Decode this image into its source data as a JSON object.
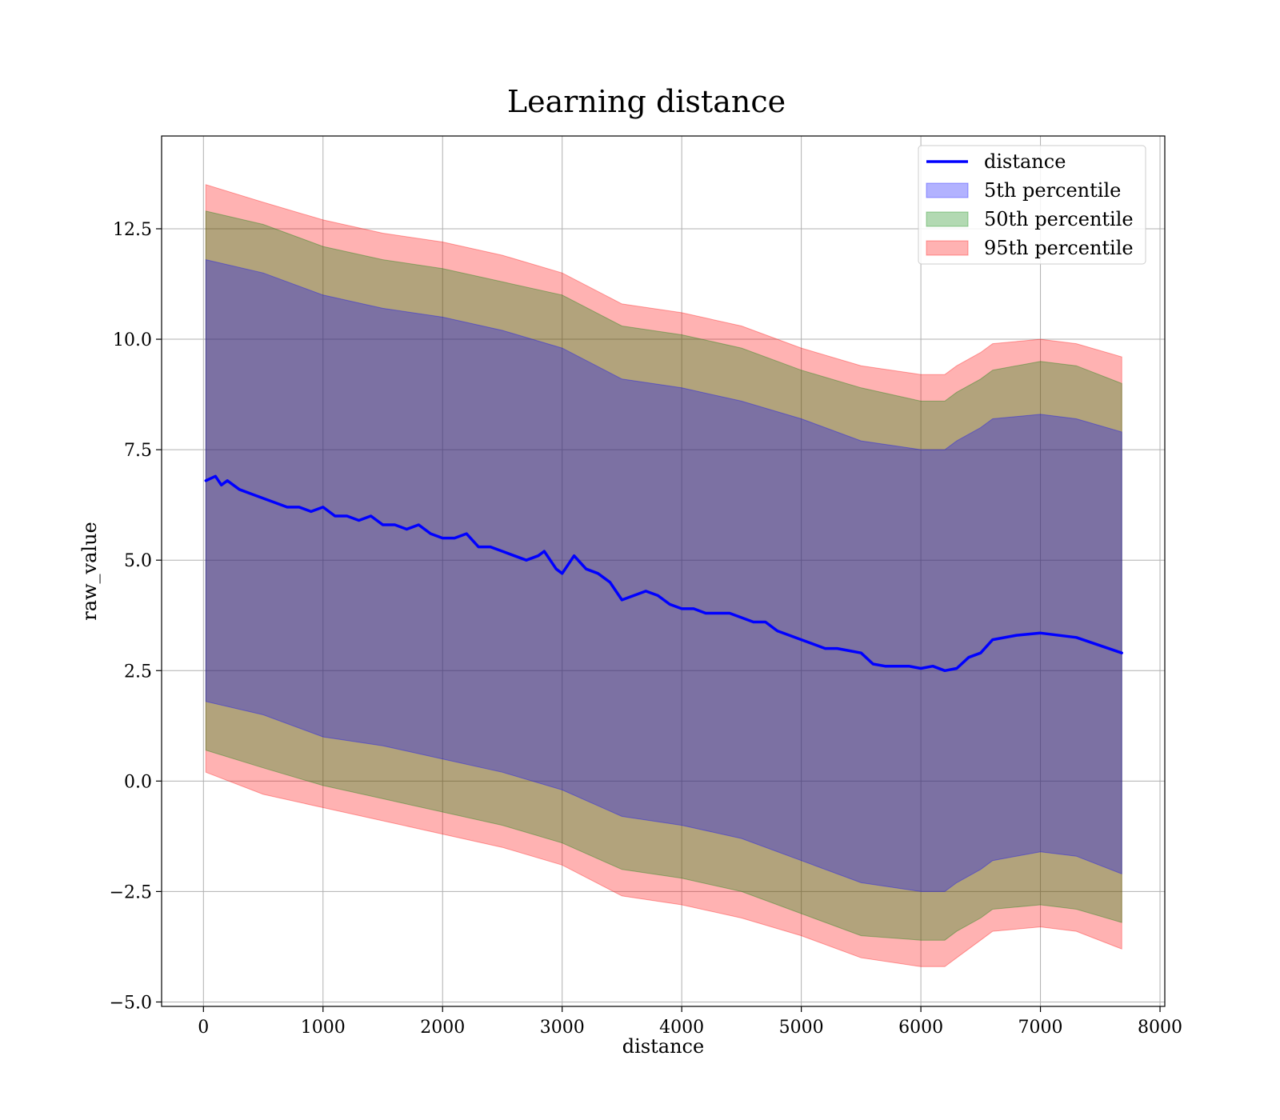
{
  "chart_data": {
    "type": "line",
    "title": "Learning distance",
    "xlabel": "distance",
    "ylabel": "raw_value",
    "xlim": [
      -350,
      8040
    ],
    "ylim": [
      -5.1,
      14.6
    ],
    "x_ticks": [
      0,
      1000,
      2000,
      3000,
      4000,
      5000,
      6000,
      7000,
      8000
    ],
    "y_ticks": [
      -5.0,
      -2.5,
      0.0,
      2.5,
      5.0,
      7.5,
      10.0,
      12.5
    ],
    "x_tick_labels": [
      "0",
      "1000",
      "2000",
      "3000",
      "4000",
      "5000",
      "6000",
      "7000",
      "8000"
    ],
    "y_tick_labels": [
      "−5.0",
      "−2.5",
      "0.0",
      "2.5",
      "5.0",
      "7.5",
      "10.0",
      "12.5"
    ],
    "grid": true,
    "legend_position": "top-right",
    "series": [
      {
        "name": "distance",
        "kind": "line",
        "color": "#0000ff",
        "x": [
          20,
          100,
          150,
          200,
          300,
          400,
          500,
          600,
          700,
          800,
          900,
          1000,
          1100,
          1200,
          1300,
          1400,
          1500,
          1600,
          1700,
          1800,
          1900,
          2000,
          2100,
          2200,
          2300,
          2400,
          2500,
          2600,
          2700,
          2800,
          2850,
          2900,
          2950,
          3000,
          3050,
          3100,
          3200,
          3300,
          3400,
          3500,
          3600,
          3700,
          3800,
          3900,
          4000,
          4100,
          4200,
          4300,
          4400,
          4500,
          4600,
          4700,
          4800,
          4900,
          5000,
          5100,
          5200,
          5300,
          5400,
          5500,
          5600,
          5700,
          5800,
          5900,
          6000,
          6100,
          6200,
          6300,
          6400,
          6500,
          6600,
          6800,
          7000,
          7300,
          7680
        ],
        "y": [
          6.8,
          6.9,
          6.7,
          6.8,
          6.6,
          6.5,
          6.4,
          6.3,
          6.2,
          6.2,
          6.1,
          6.2,
          6.0,
          6.0,
          5.9,
          6.0,
          5.8,
          5.8,
          5.7,
          5.8,
          5.6,
          5.5,
          5.5,
          5.6,
          5.3,
          5.3,
          5.2,
          5.1,
          5.0,
          5.1,
          5.2,
          5.0,
          4.8,
          4.7,
          4.9,
          5.1,
          4.8,
          4.7,
          4.5,
          4.1,
          4.2,
          4.3,
          4.2,
          4.0,
          3.9,
          3.9,
          3.8,
          3.8,
          3.8,
          3.7,
          3.6,
          3.6,
          3.4,
          3.3,
          3.2,
          3.1,
          3.0,
          3.0,
          2.95,
          2.9,
          2.65,
          2.6,
          2.6,
          2.6,
          2.55,
          2.6,
          2.5,
          2.55,
          2.8,
          2.9,
          3.2,
          3.3,
          3.35,
          3.25,
          2.9
        ]
      },
      {
        "name": "5th percentile",
        "kind": "band",
        "color": "#0000ff",
        "x": [
          20,
          500,
          1000,
          1500,
          2000,
          2500,
          3000,
          3500,
          4000,
          4500,
          5000,
          5500,
          6000,
          6200,
          6300,
          6500,
          6600,
          7000,
          7300,
          7680
        ],
        "lower": [
          1.8,
          1.5,
          1.0,
          0.8,
          0.5,
          0.2,
          -0.2,
          -0.8,
          -1.0,
          -1.3,
          -1.8,
          -2.3,
          -2.5,
          -2.5,
          -2.3,
          -2.0,
          -1.8,
          -1.6,
          -1.7,
          -2.1
        ],
        "upper": [
          11.8,
          11.5,
          11.0,
          10.7,
          10.5,
          10.2,
          9.8,
          9.1,
          8.9,
          8.6,
          8.2,
          7.7,
          7.5,
          7.5,
          7.7,
          8.0,
          8.2,
          8.3,
          8.2,
          7.9
        ]
      },
      {
        "name": "50th percentile",
        "kind": "band",
        "color": "#008000",
        "x": [
          20,
          500,
          1000,
          1500,
          2000,
          2500,
          3000,
          3500,
          4000,
          4500,
          5000,
          5500,
          6000,
          6200,
          6300,
          6500,
          6600,
          7000,
          7300,
          7680
        ],
        "lower": [
          0.7,
          0.3,
          -0.1,
          -0.4,
          -0.7,
          -1.0,
          -1.4,
          -2.0,
          -2.2,
          -2.5,
          -3.0,
          -3.5,
          -3.6,
          -3.6,
          -3.4,
          -3.1,
          -2.9,
          -2.8,
          -2.9,
          -3.2
        ],
        "upper": [
          12.9,
          12.6,
          12.1,
          11.8,
          11.6,
          11.3,
          11.0,
          10.3,
          10.1,
          9.8,
          9.3,
          8.9,
          8.6,
          8.6,
          8.8,
          9.1,
          9.3,
          9.5,
          9.4,
          9.0
        ]
      },
      {
        "name": "95th percentile",
        "kind": "band",
        "color": "#ff0000",
        "x": [
          20,
          500,
          1000,
          1500,
          2000,
          2500,
          3000,
          3500,
          4000,
          4500,
          5000,
          5500,
          6000,
          6200,
          6300,
          6500,
          6600,
          7000,
          7300,
          7680
        ],
        "lower": [
          0.2,
          -0.3,
          -0.6,
          -0.9,
          -1.2,
          -1.5,
          -1.9,
          -2.6,
          -2.8,
          -3.1,
          -3.5,
          -4.0,
          -4.2,
          -4.2,
          -4.0,
          -3.6,
          -3.4,
          -3.3,
          -3.4,
          -3.8
        ],
        "upper": [
          13.5,
          13.1,
          12.7,
          12.4,
          12.2,
          11.9,
          11.5,
          10.8,
          10.6,
          10.3,
          9.8,
          9.4,
          9.2,
          9.2,
          9.4,
          9.7,
          9.9,
          10.0,
          9.9,
          9.6
        ]
      }
    ]
  }
}
